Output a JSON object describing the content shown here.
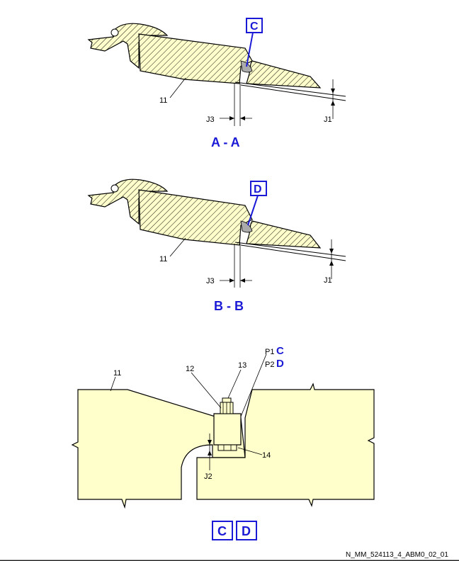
{
  "sections": [
    {
      "title": "A - A",
      "detail_tag": "C",
      "labels": {
        "part": "11",
        "gap_j3": "J3",
        "gap_j1": "J1"
      }
    },
    {
      "title": "B - B",
      "detail_tag": "D",
      "labels": {
        "part": "11",
        "gap_j3": "J3",
        "gap_j1": "J1"
      }
    }
  ],
  "detail": {
    "part_11": "11",
    "part_12": "12",
    "part_13": "13",
    "part_14": "14",
    "gap_j2": "J2",
    "p1_label": "P1",
    "p1_tag": "C",
    "p2_label": "P2",
    "p2_tag": "D",
    "tag_c": "C",
    "tag_d": "D"
  },
  "reference": "N_MM_524113_4_ABM0_02_01",
  "colors": {
    "blue": "#1a1ad6",
    "plate_fill": "#ffffcc",
    "hatch_fill": "#ffffcc"
  }
}
